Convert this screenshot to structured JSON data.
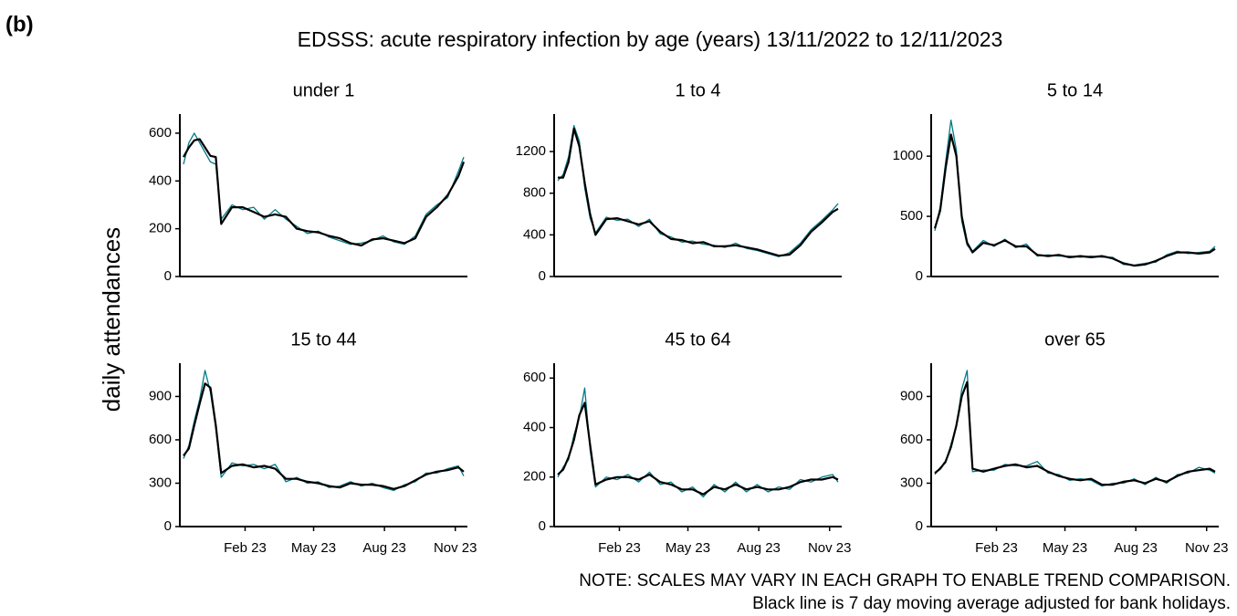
{
  "label": "(b)",
  "title": "EDSSS: acute respiratory infection by age (years) 13/11/2022 to 12/11/2023",
  "y_label": "daily attendances",
  "notes": [
    "NOTE: SCALES MAY VARY IN EACH GRAPH TO ENABLE TREND COMPARISON.",
    "Black line is 7 day moving average adjusted for bank holidays."
  ],
  "chart_data": [
    {
      "type": "line",
      "title": "under 1",
      "x": [
        "2022-11-13",
        "2022-11-20",
        "2022-11-27",
        "2022-12-04",
        "2022-12-11",
        "2022-12-18",
        "2022-12-25",
        "2023-01-01",
        "2023-01-15",
        "2023-01-29",
        "2023-02-12",
        "2023-02-26",
        "2023-03-12",
        "2023-03-26",
        "2023-04-09",
        "2023-04-23",
        "2023-05-07",
        "2023-05-21",
        "2023-06-04",
        "2023-06-18",
        "2023-07-02",
        "2023-07-16",
        "2023-07-30",
        "2023-08-13",
        "2023-08-27",
        "2023-09-10",
        "2023-09-24",
        "2023-10-08",
        "2023-10-22",
        "2023-11-05",
        "2023-11-12"
      ],
      "xlim": [
        "2022-11-13",
        "2023-11-12"
      ],
      "xticks": [
        {
          "value": "2023-02-01",
          "label": "Feb 23"
        },
        {
          "value": "2023-05-01",
          "label": "May 23"
        },
        {
          "value": "2023-08-01",
          "label": "Aug 23"
        },
        {
          "value": "2023-11-01",
          "label": "Nov 23"
        }
      ],
      "ylim": [
        0,
        680
      ],
      "yticks": [
        0,
        200,
        400,
        600
      ],
      "series": [
        {
          "color": "#007a87",
          "values": [
            470,
            560,
            600,
            560,
            520,
            480,
            470,
            240,
            300,
            280,
            290,
            240,
            280,
            240,
            210,
            180,
            190,
            165,
            150,
            135,
            140,
            150,
            170,
            145,
            135,
            170,
            260,
            300,
            330,
            440,
            500
          ]
        },
        {
          "color": "#000000",
          "values": [
            500,
            540,
            570,
            575,
            540,
            505,
            500,
            220,
            290,
            290,
            270,
            250,
            260,
            250,
            200,
            190,
            185,
            170,
            160,
            140,
            130,
            155,
            160,
            150,
            140,
            160,
            250,
            290,
            340,
            420,
            480
          ]
        }
      ]
    },
    {
      "type": "line",
      "title": "1 to 4",
      "x": [
        "2022-11-13",
        "2022-11-20",
        "2022-11-27",
        "2022-12-04",
        "2022-12-11",
        "2022-12-18",
        "2022-12-25",
        "2023-01-01",
        "2023-01-15",
        "2023-01-29",
        "2023-02-12",
        "2023-02-26",
        "2023-03-12",
        "2023-03-26",
        "2023-04-09",
        "2023-04-23",
        "2023-05-07",
        "2023-05-21",
        "2023-06-04",
        "2023-06-18",
        "2023-07-02",
        "2023-07-16",
        "2023-07-30",
        "2023-08-13",
        "2023-08-27",
        "2023-09-10",
        "2023-09-24",
        "2023-10-08",
        "2023-10-22",
        "2023-11-05",
        "2023-11-12"
      ],
      "xlim": [
        "2022-11-13",
        "2023-11-12"
      ],
      "xticks": [
        {
          "value": "2023-02-01",
          "label": "Feb 23"
        },
        {
          "value": "2023-05-01",
          "label": "May 23"
        },
        {
          "value": "2023-08-01",
          "label": "Aug 23"
        },
        {
          "value": "2023-11-01",
          "label": "Nov 23"
        }
      ],
      "ylim": [
        0,
        1560
      ],
      "yticks": [
        0,
        400,
        800,
        1200
      ],
      "series": [
        {
          "color": "#007a87",
          "values": [
            920,
            980,
            1150,
            1450,
            1300,
            850,
            560,
            420,
            570,
            540,
            550,
            480,
            550,
            410,
            380,
            330,
            340,
            310,
            300,
            280,
            320,
            270,
            250,
            220,
            190,
            230,
            320,
            450,
            540,
            640,
            700
          ]
        },
        {
          "color": "#000000",
          "values": [
            950,
            950,
            1100,
            1420,
            1250,
            900,
            600,
            400,
            550,
            560,
            530,
            500,
            530,
            430,
            360,
            350,
            320,
            330,
            290,
            290,
            300,
            280,
            260,
            230,
            200,
            210,
            300,
            430,
            520,
            620,
            650
          ]
        }
      ]
    },
    {
      "type": "line",
      "title": "5 to 14",
      "x": [
        "2022-11-13",
        "2022-11-20",
        "2022-11-27",
        "2022-12-04",
        "2022-12-11",
        "2022-12-18",
        "2022-12-25",
        "2023-01-01",
        "2023-01-15",
        "2023-01-29",
        "2023-02-12",
        "2023-02-26",
        "2023-03-12",
        "2023-03-26",
        "2023-04-09",
        "2023-04-23",
        "2023-05-07",
        "2023-05-21",
        "2023-06-04",
        "2023-06-18",
        "2023-07-02",
        "2023-07-16",
        "2023-07-30",
        "2023-08-13",
        "2023-08-27",
        "2023-09-10",
        "2023-09-24",
        "2023-10-08",
        "2023-10-22",
        "2023-11-05",
        "2023-11-12"
      ],
      "xlim": [
        "2022-11-13",
        "2023-11-12"
      ],
      "xticks": [
        {
          "value": "2023-02-01",
          "label": "Feb 23"
        },
        {
          "value": "2023-05-01",
          "label": "May 23"
        },
        {
          "value": "2023-08-01",
          "label": "Aug 23"
        },
        {
          "value": "2023-11-01",
          "label": "Nov 23"
        }
      ],
      "ylim": [
        0,
        1350
      ],
      "yticks": [
        0,
        500,
        1000
      ],
      "series": [
        {
          "color": "#007a87",
          "values": [
            380,
            580,
            950,
            1300,
            1050,
            460,
            260,
            210,
            300,
            250,
            310,
            240,
            270,
            170,
            180,
            170,
            170,
            160,
            170,
            160,
            160,
            100,
            95,
            110,
            120,
            180,
            210,
            190,
            200,
            210,
            250
          ]
        },
        {
          "color": "#000000",
          "values": [
            400,
            550,
            900,
            1180,
            1000,
            500,
            280,
            200,
            280,
            260,
            300,
            250,
            250,
            180,
            170,
            180,
            160,
            170,
            160,
            170,
            150,
            110,
            90,
            100,
            130,
            170,
            200,
            200,
            190,
            200,
            230
          ]
        }
      ]
    },
    {
      "type": "line",
      "title": "15 to 44",
      "x": [
        "2022-11-13",
        "2022-11-20",
        "2022-11-27",
        "2022-12-04",
        "2022-12-11",
        "2022-12-18",
        "2022-12-25",
        "2023-01-01",
        "2023-01-15",
        "2023-01-29",
        "2023-02-12",
        "2023-02-26",
        "2023-03-12",
        "2023-03-26",
        "2023-04-09",
        "2023-04-23",
        "2023-05-07",
        "2023-05-21",
        "2023-06-04",
        "2023-06-18",
        "2023-07-02",
        "2023-07-16",
        "2023-07-30",
        "2023-08-13",
        "2023-08-27",
        "2023-09-10",
        "2023-09-24",
        "2023-10-08",
        "2023-10-22",
        "2023-11-05",
        "2023-11-12"
      ],
      "xlim": [
        "2022-11-13",
        "2023-11-12"
      ],
      "xticks": [
        {
          "value": "2023-02-01",
          "label": "Feb 23"
        },
        {
          "value": "2023-05-01",
          "label": "May 23"
        },
        {
          "value": "2023-08-01",
          "label": "Aug 23"
        },
        {
          "value": "2023-11-01",
          "label": "Nov 23"
        }
      ],
      "ylim": [
        0,
        1130
      ],
      "yticks": [
        0,
        300,
        600,
        900
      ],
      "series": [
        {
          "color": "#007a87",
          "values": [
            470,
            560,
            730,
            880,
            1080,
            930,
            680,
            340,
            440,
            420,
            430,
            400,
            430,
            310,
            340,
            300,
            310,
            270,
            280,
            310,
            280,
            300,
            270,
            250,
            290,
            310,
            370,
            370,
            400,
            420,
            350
          ]
        },
        {
          "color": "#000000",
          "values": [
            490,
            540,
            700,
            850,
            990,
            960,
            700,
            370,
            420,
            430,
            410,
            420,
            400,
            330,
            330,
            310,
            300,
            280,
            270,
            300,
            290,
            290,
            280,
            260,
            280,
            320,
            360,
            380,
            390,
            410,
            380
          ]
        }
      ]
    },
    {
      "type": "line",
      "title": "45 to 64",
      "x": [
        "2022-11-13",
        "2022-11-20",
        "2022-11-27",
        "2022-12-04",
        "2022-12-11",
        "2022-12-18",
        "2022-12-25",
        "2023-01-01",
        "2023-01-15",
        "2023-01-29",
        "2023-02-12",
        "2023-02-26",
        "2023-03-12",
        "2023-03-26",
        "2023-04-09",
        "2023-04-23",
        "2023-05-07",
        "2023-05-21",
        "2023-06-04",
        "2023-06-18",
        "2023-07-02",
        "2023-07-16",
        "2023-07-30",
        "2023-08-13",
        "2023-08-27",
        "2023-09-10",
        "2023-09-24",
        "2023-10-08",
        "2023-10-22",
        "2023-11-05",
        "2023-11-12"
      ],
      "xlim": [
        "2022-11-13",
        "2023-11-12"
      ],
      "xticks": [
        {
          "value": "2023-02-01",
          "label": "Feb 23"
        },
        {
          "value": "2023-05-01",
          "label": "May 23"
        },
        {
          "value": "2023-08-01",
          "label": "Aug 23"
        },
        {
          "value": "2023-11-01",
          "label": "Nov 23"
        }
      ],
      "ylim": [
        0,
        660
      ],
      "yticks": [
        0,
        200,
        400,
        600
      ],
      "series": [
        {
          "color": "#007a87",
          "values": [
            200,
            240,
            270,
            370,
            440,
            560,
            310,
            160,
            200,
            190,
            210,
            180,
            220,
            170,
            180,
            140,
            160,
            120,
            170,
            140,
            180,
            140,
            170,
            140,
            160,
            150,
            190,
            180,
            200,
            210,
            180
          ]
        },
        {
          "color": "#000000",
          "values": [
            210,
            230,
            280,
            350,
            450,
            500,
            330,
            170,
            190,
            200,
            200,
            190,
            210,
            180,
            170,
            150,
            150,
            130,
            160,
            150,
            170,
            150,
            160,
            150,
            150,
            160,
            180,
            190,
            190,
            200,
            190
          ]
        }
      ]
    },
    {
      "type": "line",
      "title": "over 65",
      "x": [
        "2022-11-13",
        "2022-11-20",
        "2022-11-27",
        "2022-12-04",
        "2022-12-11",
        "2022-12-18",
        "2022-12-25",
        "2023-01-01",
        "2023-01-15",
        "2023-01-29",
        "2023-02-12",
        "2023-02-26",
        "2023-03-12",
        "2023-03-26",
        "2023-04-09",
        "2023-04-23",
        "2023-05-07",
        "2023-05-21",
        "2023-06-04",
        "2023-06-18",
        "2023-07-02",
        "2023-07-16",
        "2023-07-30",
        "2023-08-13",
        "2023-08-27",
        "2023-09-10",
        "2023-09-24",
        "2023-10-08",
        "2023-10-22",
        "2023-11-05",
        "2023-11-12"
      ],
      "xlim": [
        "2022-11-13",
        "2023-11-12"
      ],
      "xticks": [
        {
          "value": "2023-02-01",
          "label": "Feb 23"
        },
        {
          "value": "2023-05-01",
          "label": "May 23"
        },
        {
          "value": "2023-08-01",
          "label": "Aug 23"
        },
        {
          "value": "2023-11-01",
          "label": "Nov 23"
        }
      ],
      "ylim": [
        0,
        1130
      ],
      "yticks": [
        0,
        300,
        600,
        900
      ],
      "series": [
        {
          "color": "#007a87",
          "values": [
            360,
            410,
            440,
            570,
            690,
            950,
            1080,
            380,
            390,
            390,
            430,
            420,
            420,
            450,
            370,
            360,
            320,
            330,
            320,
            280,
            300,
            300,
            330,
            290,
            340,
            300,
            360,
            370,
            410,
            390,
            370
          ]
        },
        {
          "color": "#000000",
          "values": [
            370,
            400,
            450,
            550,
            700,
            900,
            1000,
            400,
            380,
            400,
            420,
            430,
            410,
            420,
            380,
            350,
            330,
            320,
            330,
            290,
            290,
            310,
            320,
            300,
            330,
            310,
            350,
            380,
            390,
            400,
            380
          ]
        }
      ]
    }
  ]
}
